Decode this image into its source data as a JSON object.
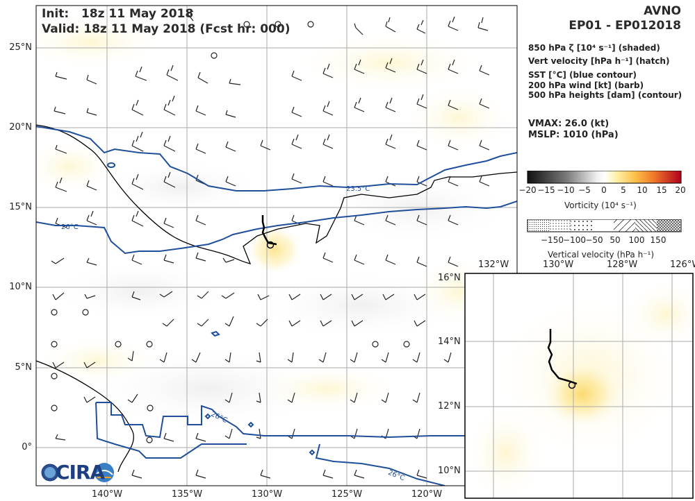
{
  "header": {
    "init_label": "Init:",
    "init_value": "18z 11 May 2018",
    "valid_label": "Valid:",
    "valid_value": "18z 11 May 2018 (Fcst hr: 000)",
    "model": "AVNO",
    "storm_id": "EP01 - EP012018"
  },
  "legend": {
    "line1": "850 hPa ζ [10⁴ s⁻¹] (shaded)",
    "line2": "Vert velocity [hPa h⁻¹] (hatch)",
    "line3": "SST [°C] (blue contour)",
    "line4": "200 hPa wind [kt] (barb)",
    "line5": "500 hPa heights [dam] (contour)"
  },
  "stats": {
    "vmax": "VMAX:  26.0 (kt)",
    "mslp": "MSLP: 1010 (hPa)"
  },
  "vorticity_colorbar": {
    "ticks": [
      "−20",
      "−15",
      "−10",
      "−5",
      "0",
      "5",
      "10",
      "15",
      "20"
    ],
    "title": "Vorticity (10⁴ s⁻¹)"
  },
  "vv_colorbar": {
    "ticks": [
      "−150",
      "−100",
      "−50",
      "50",
      "100",
      "150"
    ],
    "title": "Vertical velocity (hPa h⁻¹)"
  },
  "main_map": {
    "lat_ticks": [
      "25°N",
      "20°N",
      "15°N",
      "10°N",
      "5°N",
      "0°"
    ],
    "lon_ticks": [
      "140°W",
      "135°W",
      "130°W",
      "125°W",
      "120°W"
    ],
    "sst_labels": [
      "26°C",
      "23.5°C",
      "26°C",
      "26°C"
    ]
  },
  "inset_map": {
    "lat_ticks": [
      "16°N",
      "14°N",
      "12°N",
      "10°N"
    ],
    "lon_ticks": [
      "132°W",
      "130°W",
      "128°W",
      "126°W"
    ]
  },
  "logo": {
    "text": "CIRA"
  },
  "colors": {
    "sst_contour": "#1f4e9a",
    "height_contour": "#000000",
    "grid": "#aaaaaa",
    "track": "#000000"
  }
}
